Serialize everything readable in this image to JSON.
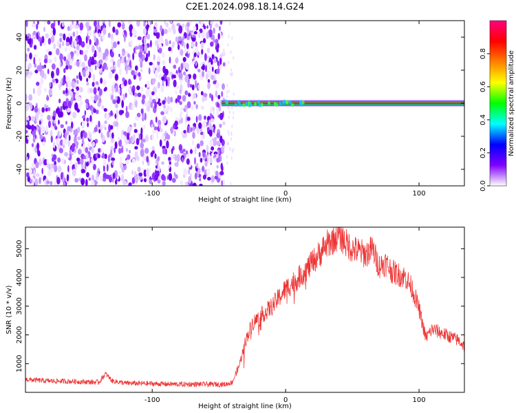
{
  "title": "C2E1.2024.098.18.14.G24",
  "chart_data": [
    {
      "type": "heatmap",
      "xlabel": "Height of straight line (km)",
      "ylabel": "Frequency (Hz)",
      "xlim": [
        -195,
        134
      ],
      "ylim": [
        -50,
        50
      ],
      "xticks": [
        -100,
        0,
        100
      ],
      "yticks": [
        -40,
        -20,
        0,
        20,
        40
      ],
      "noise_region_x": [
        -195,
        -45
      ],
      "signal_band": {
        "x": [
          -48,
          134
        ],
        "freq": 0
      },
      "colorbar": {
        "label": "Normalized spectral amplitude",
        "range": [
          0.0,
          1.0
        ],
        "ticks": [
          "0.0",
          "0.2",
          "0.4",
          "0.6",
          "0.8"
        ],
        "colors": [
          "#ffffff",
          "#8000ff",
          "#0000ff",
          "#00ffff",
          "#00ff00",
          "#ffff00",
          "#ff8000",
          "#ff0000",
          "#ff0080"
        ]
      }
    },
    {
      "type": "line",
      "xlabel": "Height of straight line (km)",
      "ylabel": "SNR (10 * v/v)",
      "xlim": [
        -195,
        134
      ],
      "ylim": [
        0,
        5750
      ],
      "xticks": [
        -100,
        0,
        100
      ],
      "yticks": [
        1000,
        2000,
        3000,
        4000,
        5000
      ],
      "line_color": "#ee3333",
      "profile": {
        "x": [
          -195,
          -180,
          -160,
          -140,
          -135,
          -130,
          -120,
          -100,
          -80,
          -60,
          -45,
          -40,
          -35,
          -30,
          -25,
          -20,
          -15,
          -10,
          -5,
          0,
          10,
          20,
          30,
          40,
          45,
          50,
          60,
          65,
          70,
          75,
          80,
          90,
          95,
          100,
          105,
          110,
          120,
          130,
          134
        ],
        "y": [
          450,
          400,
          380,
          350,
          650,
          400,
          320,
          300,
          280,
          280,
          280,
          350,
          900,
          1800,
          2400,
          2600,
          2800,
          3000,
          3300,
          3600,
          4000,
          4500,
          5100,
          5500,
          5200,
          5000,
          4800,
          5000,
          4400,
          4500,
          4200,
          4000,
          3600,
          2900,
          1900,
          2200,
          2000,
          1800,
          1600
        ]
      }
    }
  ]
}
